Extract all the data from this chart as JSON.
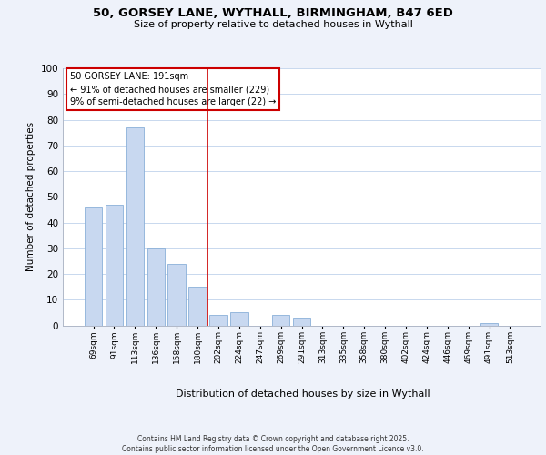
{
  "title1": "50, GORSEY LANE, WYTHALL, BIRMINGHAM, B47 6ED",
  "title2": "Size of property relative to detached houses in Wythall",
  "xlabel": "Distribution of detached houses by size in Wythall",
  "ylabel": "Number of detached properties",
  "categories": [
    "69sqm",
    "91sqm",
    "113sqm",
    "136sqm",
    "158sqm",
    "180sqm",
    "202sqm",
    "224sqm",
    "247sqm",
    "269sqm",
    "291sqm",
    "313sqm",
    "335sqm",
    "358sqm",
    "380sqm",
    "402sqm",
    "424sqm",
    "446sqm",
    "469sqm",
    "491sqm",
    "513sqm"
  ],
  "values": [
    46,
    47,
    77,
    30,
    24,
    15,
    4,
    5,
    0,
    4,
    3,
    0,
    0,
    0,
    0,
    0,
    0,
    0,
    0,
    1,
    0
  ],
  "bar_color": "#c8d8f0",
  "bar_edge_color": "#8ab0d8",
  "vline_x_index": 6,
  "vline_color": "#cc0000",
  "annotation_line1": "50 GORSEY LANE: 191sqm",
  "annotation_line2": "← 91% of detached houses are smaller (229)",
  "annotation_line3": "9% of semi-detached houses are larger (22) →",
  "ylim": [
    0,
    100
  ],
  "yticks": [
    0,
    10,
    20,
    30,
    40,
    50,
    60,
    70,
    80,
    90,
    100
  ],
  "background_color": "#eef2fa",
  "plot_bg_color": "#ffffff",
  "grid_color": "#c8d8ee",
  "footer_line1": "Contains HM Land Registry data © Crown copyright and database right 2025.",
  "footer_line2": "Contains public sector information licensed under the Open Government Licence v3.0."
}
